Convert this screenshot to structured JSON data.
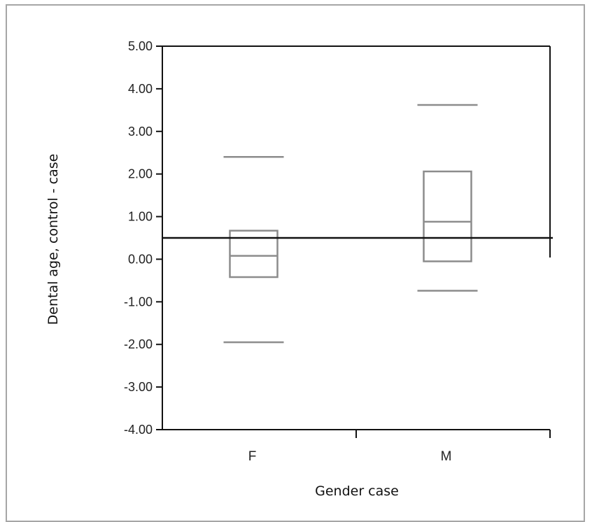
{
  "chart_data": {
    "type": "box",
    "xlabel": "Gender case",
    "ylabel": "Dental age, control - case",
    "categories": [
      "F",
      "M"
    ],
    "ylim": [
      -4,
      5
    ],
    "yticks": [
      "5.00",
      "4.00",
      "3.00",
      "2.00",
      "1.00",
      "0.00",
      "-1.00",
      "-2.00",
      "-3.00",
      "-4.00"
    ],
    "reference_line": 0.5,
    "boxes": [
      {
        "category": "F",
        "whisker_low": -1.95,
        "q1": -0.42,
        "median": 0.08,
        "q3": 0.67,
        "whisker_high": 2.4
      },
      {
        "category": "M",
        "whisker_low": -0.74,
        "q1": -0.05,
        "median": 0.88,
        "q3": 2.06,
        "whisker_high": 3.62
      }
    ],
    "grid": false,
    "colors": {
      "box": "#8c8c8c",
      "reference_line": "#111111",
      "axis": "#111111",
      "frame": "#a6a6a6"
    }
  }
}
